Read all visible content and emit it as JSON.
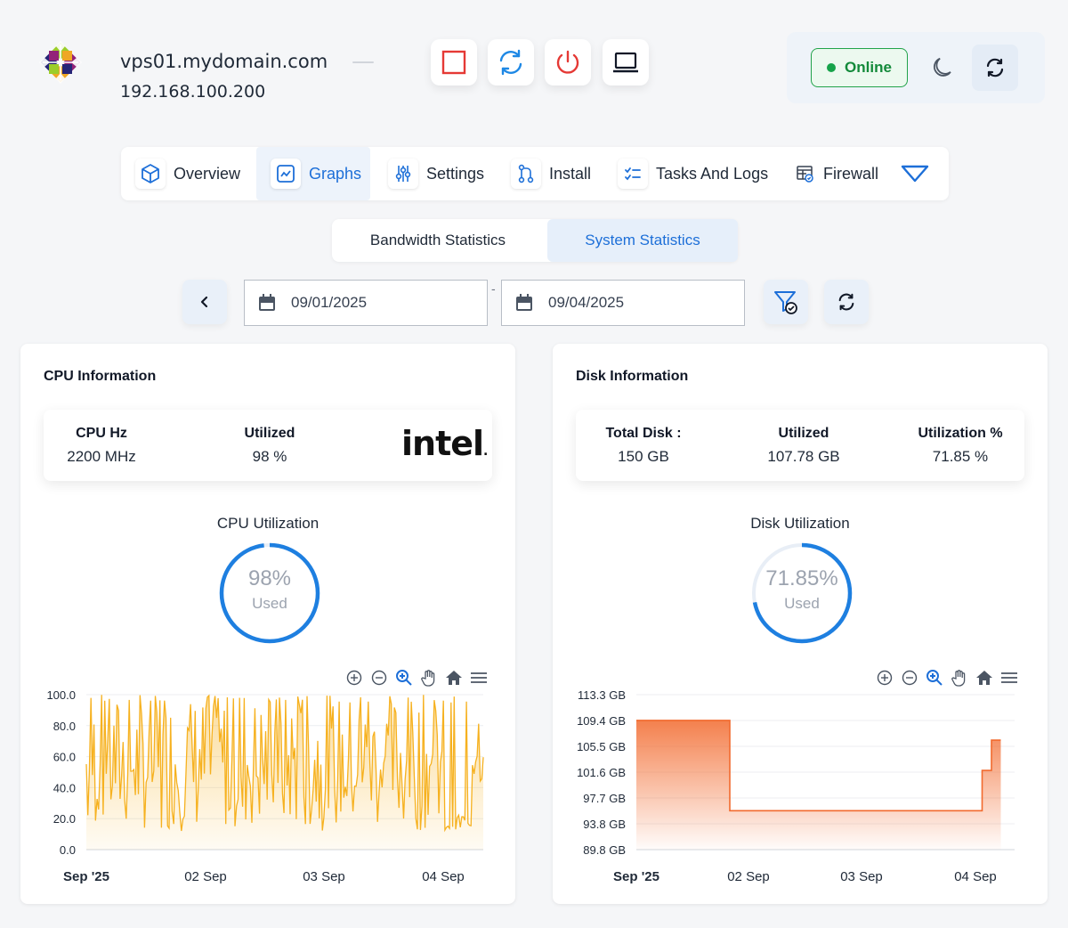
{
  "server": {
    "hostname": "vps01.mydomain.com",
    "ip": "192.168.100.200",
    "os_logo": "centos-logo"
  },
  "controls": [
    {
      "icon": "stop-icon",
      "color": "#e53935"
    },
    {
      "icon": "restart-icon",
      "color": "#1e88e5"
    },
    {
      "icon": "power-icon",
      "color": "#e53935"
    },
    {
      "icon": "console-icon",
      "color": "#111827"
    }
  ],
  "status": {
    "label": "Online",
    "color": "#16a34a"
  },
  "tabs": [
    {
      "label": "Overview",
      "icon": "cube-icon"
    },
    {
      "label": "Graphs",
      "icon": "chart-icon",
      "active": true
    },
    {
      "label": "Settings",
      "icon": "sliders-icon"
    },
    {
      "label": "Install",
      "icon": "git-icon"
    },
    {
      "label": "Tasks And Logs",
      "icon": "checklist-icon"
    },
    {
      "label": "Firewall",
      "icon": "firewall-icon"
    }
  ],
  "sub_tabs": [
    {
      "label": "Bandwidth Statistics"
    },
    {
      "label": "System Statistics",
      "active": true
    }
  ],
  "filter": {
    "start_date": "09/01/2025",
    "end_date": "09/04/2025",
    "separator": "-"
  },
  "cpu": {
    "title": "CPU Information",
    "hz_label": "CPU Hz",
    "hz_value": "2200 MHz",
    "util_label": "Utilized",
    "util_value": "98 %",
    "brand": "intel",
    "gauge_title": "CPU Utilization",
    "gauge_pct": "98%",
    "gauge_used": "Used",
    "gauge_fraction": 0.98
  },
  "disk": {
    "title": "Disk Information",
    "total_label": "Total Disk :",
    "total_value": "150 GB",
    "util_label": "Utilized",
    "util_value": "107.78 GB",
    "pct_label": "Utilization %",
    "pct_value": "71.85 %",
    "gauge_title": "Disk Utilization",
    "gauge_pct": "71.85%",
    "gauge_used": "Used",
    "gauge_fraction": 0.7185
  },
  "chart_data": [
    {
      "type": "area",
      "name": "cpu-chart",
      "y_ticks": [
        "100.0",
        "80.0",
        "60.0",
        "40.0",
        "20.0",
        "0.0"
      ],
      "ylim": [
        0,
        100
      ],
      "x_ticks": [
        "Sep '25",
        "02 Sep",
        "03 Sep",
        "04 Sep"
      ],
      "x_range_days": [
        0,
        3.34
      ],
      "color": "#f6b11f",
      "values_summary": "volatile series oscillating between ~10 and ~100 from Sep 1 to Sep 4; drops to ~15-20 near end then spikes to 100"
    },
    {
      "type": "area",
      "name": "disk-chart",
      "y_ticks": [
        "113.3 GB",
        "109.4 GB",
        "105.5 GB",
        "101.6 GB",
        "97.7 GB",
        "93.8 GB",
        "89.8 GB"
      ],
      "ylim": [
        89.8,
        113.3
      ],
      "x_ticks": [
        "Sep '25",
        "02 Sep",
        "03 Sep",
        "04 Sep"
      ],
      "color": "#f26a2e",
      "x": [
        "Sep 1 00:00",
        "Sep 1 20:00",
        "Sep 1 20:00",
        "Sep 4 02:00",
        "Sep 4 02:00",
        "Sep 4 04:00",
        "Sep 4 04:00",
        "Sep 4 06:00"
      ],
      "values": [
        109.4,
        109.4,
        95.7,
        95.7,
        101.8,
        101.8,
        106.4,
        106.4
      ]
    }
  ]
}
